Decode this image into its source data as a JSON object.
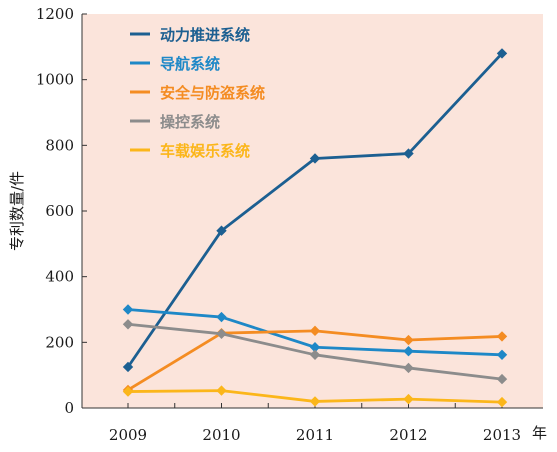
{
  "chart_data": {
    "type": "line",
    "x": [
      "2009",
      "2010",
      "2011",
      "2012",
      "2013"
    ],
    "x_unit": "年",
    "ylabel": "专利数量/件",
    "ylim": [
      0,
      1200
    ],
    "yticks": [
      0,
      200,
      400,
      600,
      800,
      1000,
      1200
    ],
    "legend_position": "top-left",
    "plot_background": "#fbe4db",
    "series": [
      {
        "name": "动力推进系统",
        "color": "#1c5f91",
        "values": [
          125,
          540,
          760,
          775,
          1080
        ]
      },
      {
        "name": "导航系统",
        "color": "#1e88c7",
        "values": [
          300,
          277,
          185,
          173,
          162
        ]
      },
      {
        "name": "安全与防盗系统",
        "color": "#f48c22",
        "values": [
          55,
          228,
          235,
          207,
          218
        ]
      },
      {
        "name": "操控系统",
        "color": "#8c8c8c",
        "values": [
          255,
          226,
          162,
          122,
          88
        ]
      },
      {
        "name": "车载娱乐系统",
        "color": "#fbb61a",
        "values": [
          50,
          53,
          20,
          27,
          18
        ]
      }
    ]
  }
}
